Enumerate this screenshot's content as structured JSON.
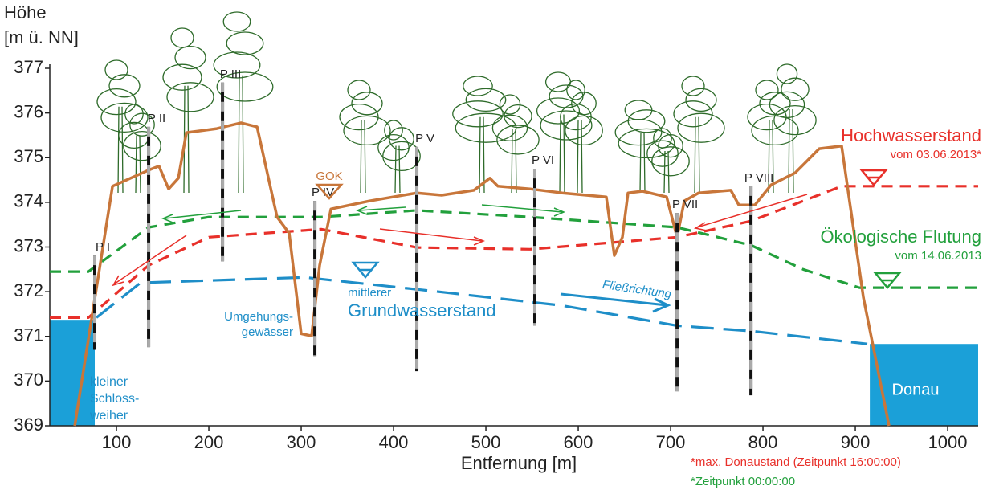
{
  "chart_data": {
    "type": "line",
    "y_title_lines": [
      "Höhe",
      "[m ü. NN]"
    ],
    "x_title": "Entfernung [m]",
    "xlim": [
      27.8,
      1033
    ],
    "ylim": [
      369,
      377
    ],
    "xticks": [
      100,
      200,
      300,
      400,
      500,
      600,
      700,
      800,
      900,
      1000
    ],
    "yticks": [
      369,
      370,
      371,
      372,
      373,
      374,
      375,
      376,
      377
    ],
    "series": [
      {
        "name": "GOK",
        "color": "#c8763a",
        "style": "solid",
        "x": [
          54.8,
          95.7,
          134.8,
          146.1,
          156.5,
          167.0,
          175.7,
          208.7,
          234.8,
          252.2,
          273.9,
          287.0,
          300.0,
          311.3,
          320.0,
          332.2,
          373.9,
          425.2,
          452.2,
          487.0,
          504.3,
          513.0,
          547.8,
          582.6,
          630.4,
          639.1,
          647.8,
          653.9,
          669.6,
          695.7,
          707.0,
          714.8,
          730.4,
          765.2,
          773.9,
          791.3,
          808.7,
          834.8,
          860.9,
          885.2,
          908.7,
          936.5
        ],
        "values": [
          369.0,
          374.36,
          374.72,
          374.81,
          374.3,
          374.54,
          375.56,
          375.65,
          375.78,
          375.69,
          373.67,
          373.31,
          371.06,
          371.01,
          372.59,
          373.85,
          374.03,
          374.21,
          374.16,
          374.27,
          374.54,
          374.36,
          374.3,
          374.21,
          374.12,
          372.81,
          373.22,
          374.21,
          374.25,
          374.12,
          373.22,
          374.03,
          374.21,
          374.27,
          373.94,
          373.94,
          374.39,
          374.66,
          375.2,
          375.26,
          371.87,
          369.0
        ]
      },
      {
        "name": "Hochwasserstand",
        "color": "#e8302a",
        "style": "dashed",
        "x": [
          27.8,
          69.6,
          134.8,
          200.0,
          321.7,
          425.2,
          547.8,
          707.0,
          787.0,
          885.2,
          1033.0
        ],
        "values": [
          371.42,
          371.42,
          372.59,
          373.22,
          373.4,
          372.99,
          372.95,
          373.22,
          373.58,
          374.36,
          374.36
        ]
      },
      {
        "name": "Ökologische Flutung",
        "color": "#22a03c",
        "style": "dashed",
        "x": [
          27.8,
          69.6,
          134.8,
          200.0,
          321.7,
          425.2,
          547.8,
          707.0,
          787.0,
          843.5,
          904.3,
          1033.0
        ],
        "values": [
          372.45,
          372.45,
          373.44,
          373.67,
          373.67,
          373.82,
          373.67,
          373.44,
          373.04,
          372.5,
          372.09,
          372.09
        ]
      },
      {
        "name": "Grundwasserstand",
        "color": "#1e8ec8",
        "style": "longdash",
        "x": [
          78.3,
          126.1,
          304.3,
          426.1,
          582.6,
          707.0,
          787.0,
          913.0
        ],
        "values": [
          371.42,
          372.2,
          372.32,
          372.05,
          371.69,
          371.24,
          371.12,
          370.83
        ]
      }
    ],
    "water": [
      {
        "x": [
          27.8,
          76.5
        ],
        "level": 371.37,
        "color": "#1ba0d8"
      },
      {
        "x": [
          915.7,
          1033.0
        ],
        "level": 370.83,
        "color": "#1ba0d8"
      }
    ],
    "piezometers": [
      {
        "label": "P I",
        "x": 76.5,
        "top": 372.81,
        "bottom": 370.7
      },
      {
        "label": "P II",
        "x": 134.8,
        "top": 375.69,
        "bottom": 370.76
      },
      {
        "label": "P III",
        "x": 214.8,
        "top": 376.68,
        "bottom": 372.68
      },
      {
        "label": "P IV",
        "x": 314.8,
        "top": 374.03,
        "bottom": 370.56
      },
      {
        "label": "P V",
        "x": 425.2,
        "top": 375.24,
        "bottom": 370.22
      },
      {
        "label": "P VI",
        "x": 553.0,
        "top": 374.75,
        "bottom": 371.24
      },
      {
        "label": "P VII",
        "x": 707.0,
        "top": 373.76,
        "bottom": 369.77
      },
      {
        "label": "P VIII",
        "x": 787.0,
        "top": 374.36,
        "bottom": 369.68
      }
    ],
    "annotations": {
      "flood_date": "vom 03.06.2013*",
      "eco_date": "vom 14.06.2013",
      "gw_prefix": "mittlerer",
      "bypass": [
        "Umgehungs-",
        "gewässer"
      ],
      "pond": [
        "kleiner",
        "Schloss-",
        "weiher"
      ],
      "river": "Donau",
      "flow": "Fließrichtung",
      "footnotes": [
        "*max. Donaustand (Zeitpunkt 16:00:00)",
        "*Zeitpunkt 00:00:00"
      ]
    }
  }
}
